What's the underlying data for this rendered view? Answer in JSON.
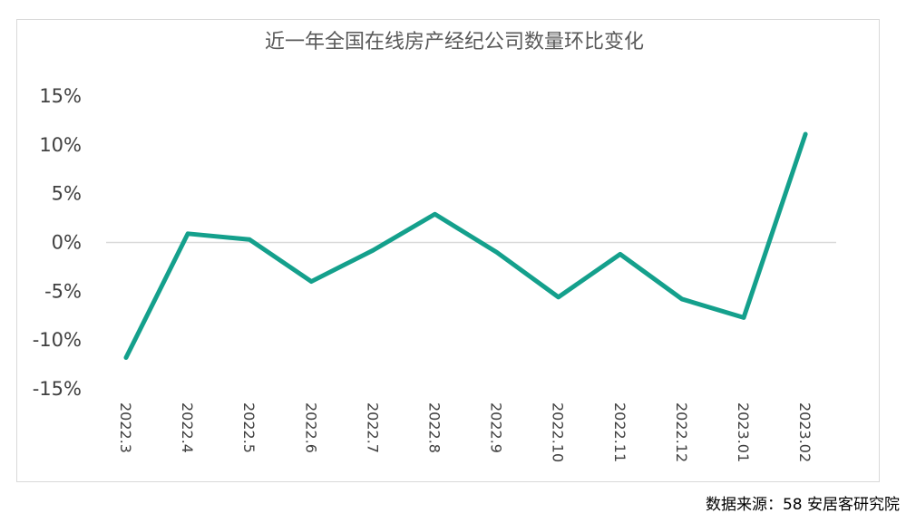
{
  "chart_data": {
    "type": "line",
    "title": "近一年全国在线房产经纪公司数量环比变化",
    "categories": [
      "2022.3",
      "2022.4",
      "2022.5",
      "2022.6",
      "2022.7",
      "2022.8",
      "2022.9",
      "2022.10",
      "2022.11",
      "2022.12",
      "2023.01",
      "2023.02"
    ],
    "series": [
      {
        "values": [
          -11.8,
          0.9,
          0.3,
          -4.0,
          -0.8,
          2.9,
          -1.0,
          -5.6,
          -1.2,
          -5.8,
          -7.7,
          11.1
        ]
      }
    ],
    "ylim": [
      -15,
      15
    ],
    "yticks": [
      15,
      10,
      5,
      0,
      -5,
      -10,
      -15
    ],
    "ytick_labels": [
      "15%",
      "10%",
      "5%",
      "0%",
      "-5%",
      "-10%",
      "-15%"
    ],
    "line_color": "#14a08c",
    "zero_line_color": "#d9d9d9",
    "grid": false,
    "legend": "none"
  },
  "source": "数据来源：58 安居客研究院"
}
